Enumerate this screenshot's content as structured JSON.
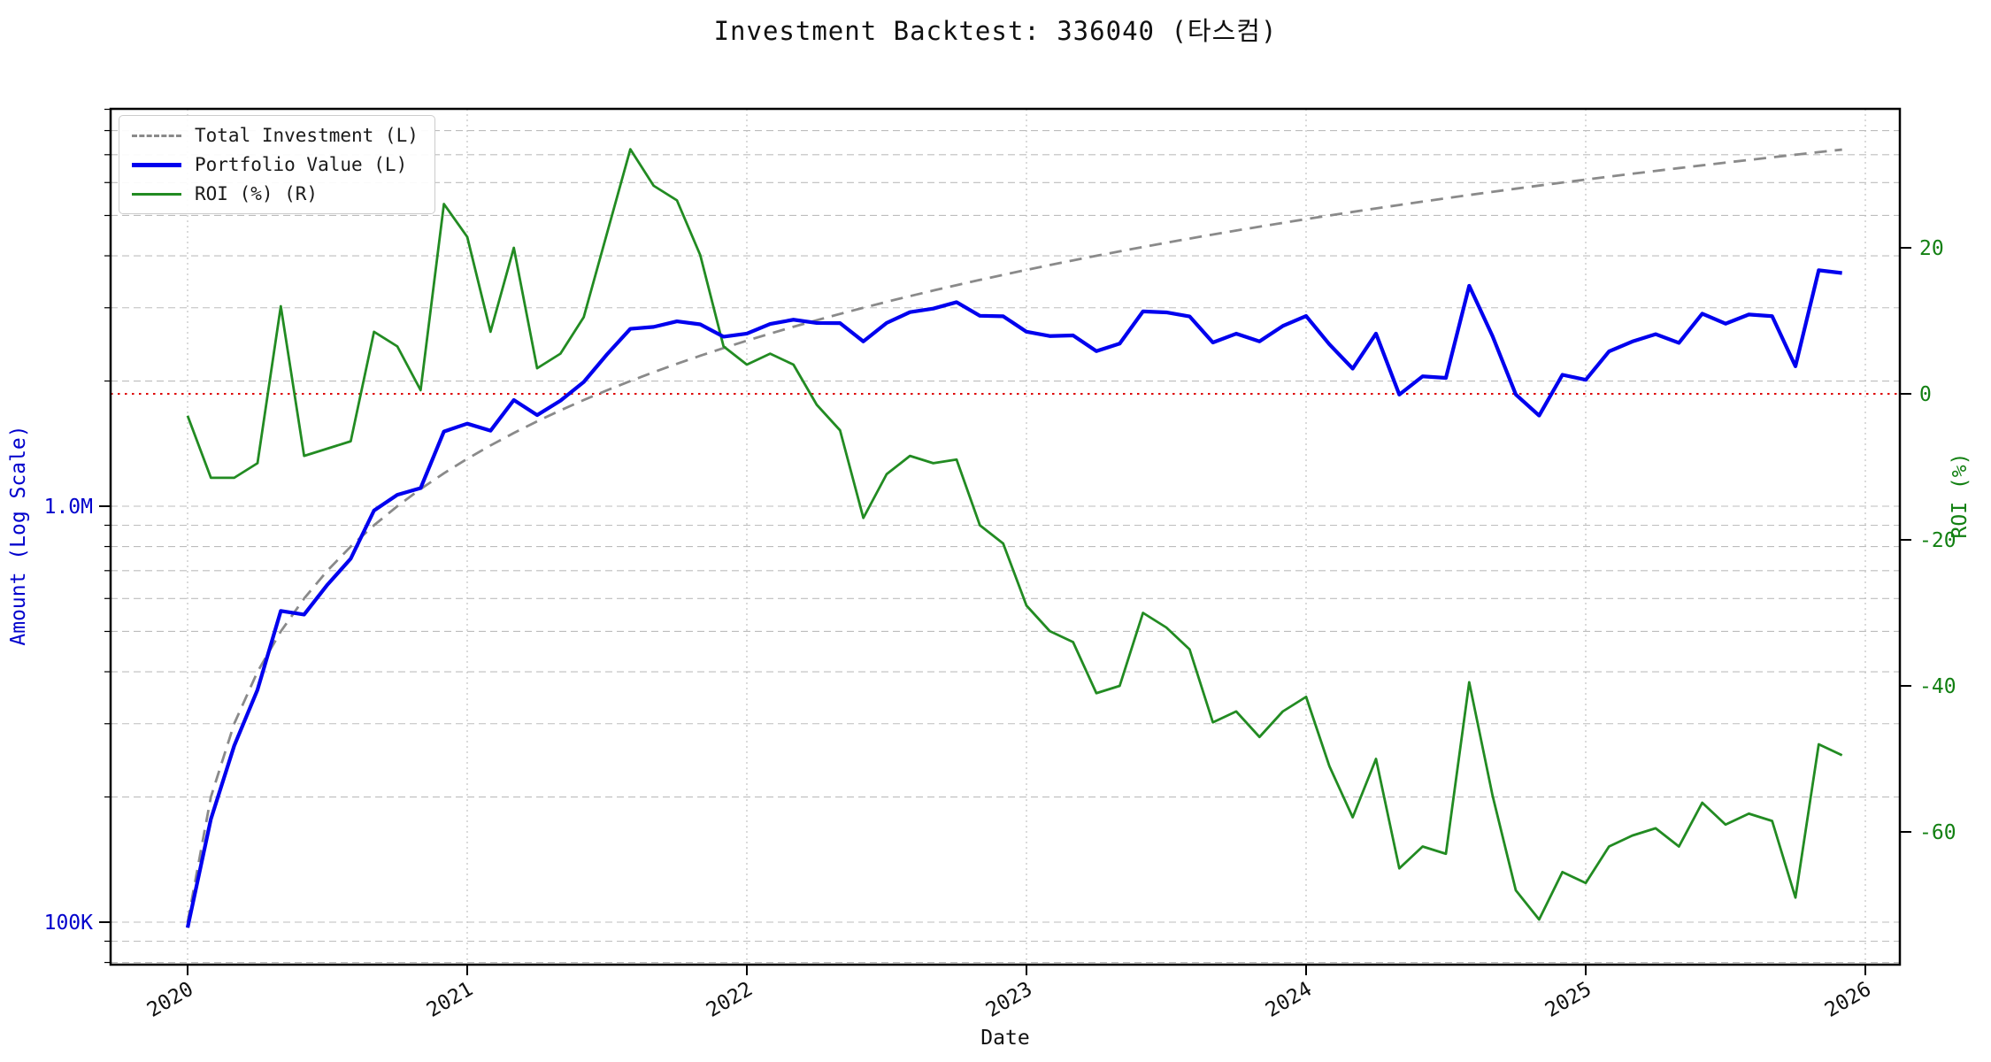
{
  "title": "Investment Backtest: 336040 (타스컴)",
  "chart_data": {
    "type": "line",
    "x_label": "Date",
    "x": [
      "2020-01",
      "2020-02",
      "2020-03",
      "2020-04",
      "2020-05",
      "2020-06",
      "2020-07",
      "2020-08",
      "2020-09",
      "2020-10",
      "2020-11",
      "2020-12",
      "2021-01",
      "2021-02",
      "2021-03",
      "2021-04",
      "2021-05",
      "2021-06",
      "2021-07",
      "2021-08",
      "2021-09",
      "2021-10",
      "2021-11",
      "2021-12",
      "2022-01",
      "2022-02",
      "2022-03",
      "2022-04",
      "2022-05",
      "2022-06",
      "2022-07",
      "2022-08",
      "2022-09",
      "2022-10",
      "2022-11",
      "2022-12",
      "2023-01",
      "2023-02",
      "2023-03",
      "2023-04",
      "2023-05",
      "2023-06",
      "2023-07",
      "2023-08",
      "2023-09",
      "2023-10",
      "2023-11",
      "2023-12",
      "2024-01",
      "2024-02",
      "2024-03",
      "2024-04",
      "2024-05",
      "2024-06",
      "2024-07",
      "2024-08",
      "2024-09",
      "2024-10",
      "2024-11",
      "2024-12",
      "2025-01",
      "2025-02",
      "2025-03",
      "2025-04",
      "2025-05",
      "2025-06",
      "2025-07",
      "2025-08",
      "2025-09",
      "2025-10",
      "2025-11",
      "2025-12"
    ],
    "series": [
      {
        "name": "Total Investment (L)",
        "axis": "left",
        "color": "#8a8a8a",
        "style": "dashed",
        "values": [
          100000,
          200000,
          300000,
          400000,
          500000,
          600000,
          700000,
          800000,
          900000,
          1000000,
          1100000,
          1200000,
          1300000,
          1400000,
          1500000,
          1600000,
          1700000,
          1800000,
          1900000,
          2000000,
          2100000,
          2200000,
          2300000,
          2400000,
          2500000,
          2600000,
          2700000,
          2800000,
          2900000,
          3000000,
          3100000,
          3200000,
          3300000,
          3400000,
          3500000,
          3600000,
          3700000,
          3800000,
          3900000,
          4000000,
          4100000,
          4200000,
          4300000,
          4400000,
          4500000,
          4600000,
          4700000,
          4800000,
          4900000,
          5000000,
          5100000,
          5200000,
          5300000,
          5400000,
          5500000,
          5600000,
          5700000,
          5800000,
          5900000,
          6000000,
          6100000,
          6200000,
          6300000,
          6400000,
          6500000,
          6600000,
          6700000,
          6800000,
          6900000,
          7000000,
          7100000,
          7200000
        ]
      },
      {
        "name": "Portfolio Value (L)",
        "axis": "left",
        "color": "#0000ee",
        "style": "solid",
        "values": [
          97000,
          177000,
          265500,
          362000,
          560000,
          549000,
          647500,
          748000,
          976500,
          1065000,
          1105500,
          1512000,
          1579500,
          1519000,
          1800000,
          1656000,
          1793500,
          1989000,
          2318000,
          2670000,
          2698500,
          2783000,
          2737000,
          2556000,
          2600000,
          2743000,
          2808000,
          2758000,
          2755000,
          2490000,
          2759000,
          2928000,
          2986500,
          3094000,
          2870000,
          2862000,
          2627000,
          2565000,
          2574000,
          2360000,
          2460000,
          2940000,
          2924000,
          2860000,
          2475000,
          2599000,
          2491000,
          2712000,
          2866500,
          2450000,
          2142000,
          2600000,
          1855000,
          2052000,
          2035000,
          3388000,
          2565000,
          1856000,
          1652000,
          2070000,
          2013000,
          2356000,
          2488500,
          2592000,
          2470000,
          2904000,
          2747000,
          2890000,
          2863500,
          2170000,
          3692000,
          3636000
        ]
      },
      {
        "name": "ROI (%) (R)",
        "axis": "right",
        "color": "#228B22",
        "style": "solid",
        "values": [
          -3,
          -11.5,
          -11.5,
          -9.5,
          12,
          -8.5,
          -7.5,
          -6.5,
          8.5,
          6.5,
          0.5,
          26,
          21.5,
          8.5,
          20,
          3.5,
          5.5,
          10.5,
          22,
          33.5,
          28.5,
          26.5,
          19,
          6.5,
          4,
          5.5,
          4,
          -1.5,
          -5,
          -17,
          -11,
          -8.5,
          -9.5,
          -9,
          -18,
          -20.5,
          -29,
          -32.5,
          -34,
          -41,
          -40,
          -30,
          -32,
          -35,
          -45,
          -43.5,
          -47,
          -43.5,
          -41.5,
          -51,
          -58,
          -50,
          -65,
          -62,
          -63,
          -39.5,
          -55,
          -68,
          -72,
          -65.5,
          -67,
          -62,
          -60.5,
          -59.5,
          -62,
          -56,
          -59,
          -57.5,
          -58.5,
          -69,
          -48,
          -49.5
        ]
      }
    ],
    "left_axis": {
      "label": "Amount (Log Scale)",
      "scale": "log",
      "tick_labels": [
        "1.0M",
        "100K"
      ],
      "tick_values": [
        1000000,
        100000
      ],
      "range": [
        79000,
        9000000
      ],
      "color": "#0000cc"
    },
    "right_axis": {
      "label": "ROI (%)",
      "tick_values": [
        20,
        0,
        -20,
        -40,
        -60
      ],
      "range": [
        -78,
        39
      ],
      "color": "#128012"
    },
    "x_axis": {
      "label": "Date",
      "tick_labels": [
        "2020",
        "2021",
        "2022",
        "2023",
        "2024",
        "2025",
        "2026"
      ]
    },
    "zero_line": {
      "value": 0,
      "color": "#dd0000",
      "style": "dotted"
    },
    "grid": true,
    "legend_position": "top-left",
    "legend": [
      "Total Investment (L)",
      "Portfolio Value (L)",
      "ROI (%) (R)"
    ]
  }
}
